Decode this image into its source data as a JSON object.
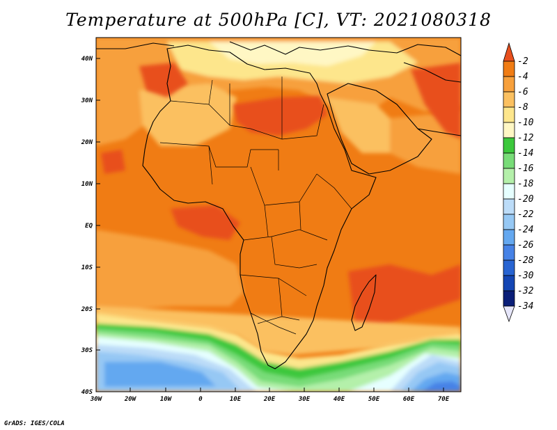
{
  "title": "Temperature at 500hPa [C], VT: 2021080318",
  "credit": "GrADS: IGES/COLA",
  "lon_ticks": [
    "30W",
    "20W",
    "10W",
    "0",
    "10E",
    "20E",
    "30E",
    "40E",
    "50E",
    "60E",
    "70E"
  ],
  "lat_ticks": [
    "40N",
    "30N",
    "20N",
    "10N",
    "EQ",
    "10S",
    "20S",
    "30S",
    "40S"
  ],
  "colorbar": {
    "labels": [
      "-2",
      "-4",
      "-6",
      "-8",
      "-10",
      "-12",
      "-14",
      "-16",
      "-18",
      "-20",
      "-22",
      "-24",
      "-26",
      "-28",
      "-30",
      "-32",
      "-34"
    ],
    "colors": [
      "#e8501e",
      "#f07c14",
      "#f7a03c",
      "#fbc060",
      "#fde68c",
      "#fff7c4",
      "#3cc83c",
      "#78dc78",
      "#b4f0aa",
      "#e6ffff",
      "#bcdcf8",
      "#96c8f4",
      "#64a8f0",
      "#4682e6",
      "#2864d2",
      "#1446b4",
      "#0a1e78",
      "#e6e6fa"
    ]
  },
  "map": {
    "colors": {
      "warm_red": "#e8501e",
      "orange": "#f07c14",
      "light_orange": "#f7a03c",
      "tan": "#fbc060",
      "pale_yellow": "#fde68c",
      "cream": "#fff7c4",
      "green": "#3cc83c",
      "light_green": "#78dc78",
      "pale_green": "#b4f0aa",
      "pale_cyan": "#e6ffff",
      "light_blue": "#bcdcf8",
      "mid_blue": "#96c8f4",
      "blue": "#64a8f0",
      "deep_blue": "#4682e6"
    }
  }
}
